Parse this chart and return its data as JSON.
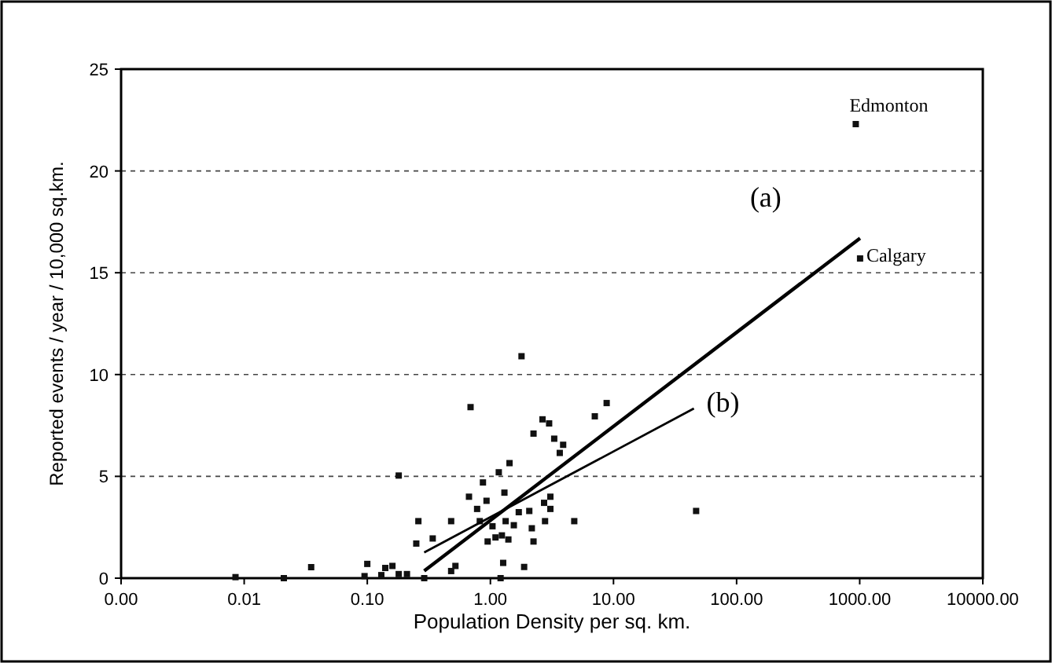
{
  "chart_data": {
    "type": "scatter",
    "xlabel": "Population Density per sq. km.",
    "ylabel": "Reported events / year / 10,000 sq.km.",
    "log": "x",
    "grid": "y",
    "xlim": [
      0.001,
      10000
    ],
    "xticks": [
      {
        "value": 0.001,
        "label": "0.00"
      },
      {
        "value": 0.01,
        "label": "0.01"
      },
      {
        "value": 0.1,
        "label": "0.10"
      },
      {
        "value": 1,
        "label": "1.00"
      },
      {
        "value": 10,
        "label": "10.00"
      },
      {
        "value": 100,
        "label": "100.00"
      },
      {
        "value": 1000,
        "label": "1000.00"
      },
      {
        "value": 10000,
        "label": "10000.00"
      }
    ],
    "ylim": [
      0,
      25
    ],
    "yticks": [
      0,
      5,
      10,
      15,
      20,
      25
    ],
    "series": [
      {
        "marker": "square",
        "color": "#111111",
        "x": [
          0.0085,
          0.021,
          0.035,
          0.1,
          0.095,
          0.13,
          0.14,
          0.16,
          0.18,
          0.21,
          0.18,
          0.26,
          0.25,
          0.29,
          0.34,
          0.48,
          0.52,
          0.48,
          0.69,
          0.67,
          0.78,
          0.87,
          0.93,
          0.82,
          1.04,
          0.95,
          1.1,
          1.24,
          1.4,
          1.17,
          1.3,
          1.43,
          1.33,
          1.55,
          1.27,
          1.21,
          1.79,
          1.7,
          2.24,
          2.07,
          2.24,
          2.17,
          1.88,
          2.65,
          3.0,
          3.3,
          3.66,
          3.9,
          2.73,
          3.07,
          3.07,
          2.78,
          8.8,
          7.05,
          4.8,
          46.9,
          929,
          1007
        ],
        "values": [
          0.05,
          0,
          0.54,
          0.7,
          0.1,
          0.15,
          0.5,
          0.6,
          0.2,
          0.2,
          5.04,
          2.8,
          1.7,
          0,
          1.95,
          2.8,
          0.6,
          0.35,
          8.4,
          4.0,
          3.4,
          4.7,
          3.8,
          2.8,
          2.55,
          1.8,
          2.0,
          2.1,
          1.9,
          5.2,
          4.2,
          5.65,
          2.8,
          2.6,
          0.75,
          0,
          10.9,
          3.24,
          7.1,
          3.3,
          1.8,
          2.45,
          0.55,
          7.8,
          7.6,
          6.85,
          6.15,
          6.55,
          3.7,
          4.0,
          3.4,
          2.8,
          8.6,
          7.95,
          2.8,
          3.3,
          22.3,
          15.7
        ]
      },
      {
        "type": "line",
        "name": "(a)",
        "marker": "none",
        "color": "#000000",
        "x": [
          0.29,
          1007
        ],
        "values": [
          0.36,
          16.7
        ]
      },
      {
        "type": "line",
        "name": "(b)",
        "marker": "none",
        "color": "#000000",
        "x": [
          0.29,
          45
        ],
        "values": [
          1.26,
          8.33
        ]
      }
    ],
    "annotations": [
      {
        "text": "Edmonton",
        "x": 929,
        "y": 22.3
      },
      {
        "text": "Calgary",
        "x": 1007,
        "y": 15.7
      }
    ]
  }
}
